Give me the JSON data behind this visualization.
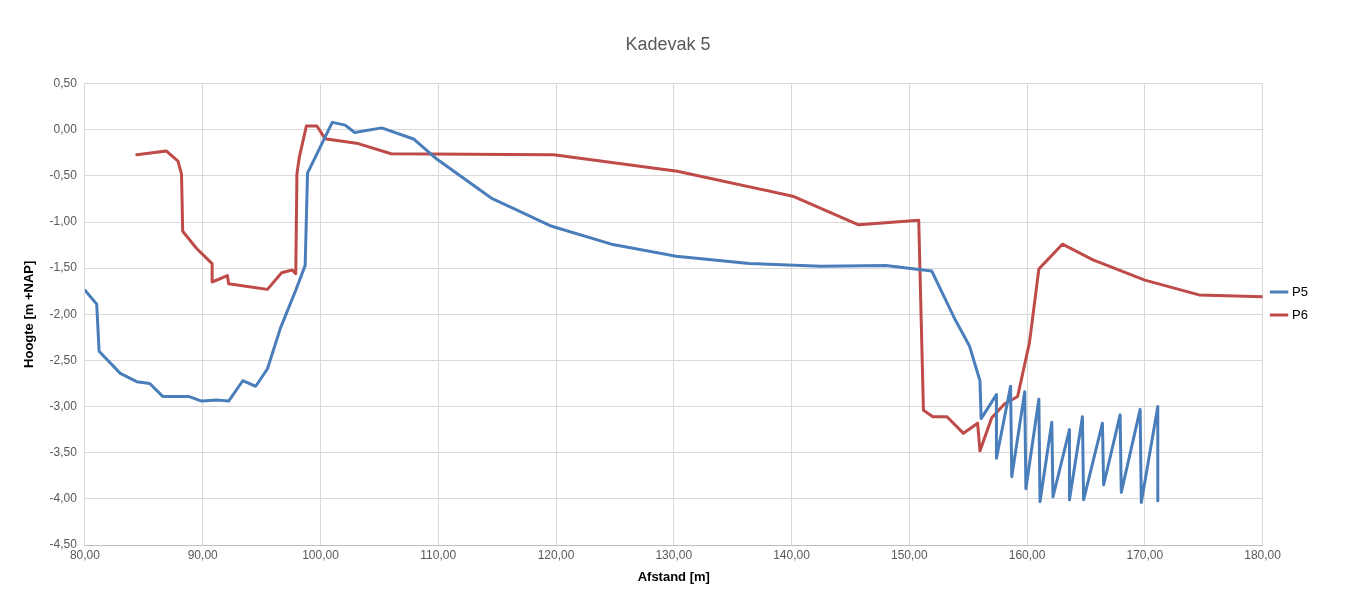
{
  "chart_data": {
    "type": "line",
    "title": "Kadevak 5",
    "xlabel": "Afstand [m]",
    "ylabel": "Hoogte [m +NAP]",
    "xlim": [
      80,
      180
    ],
    "xticks": [
      {
        "value": 80,
        "label": "80,00"
      },
      {
        "value": 90,
        "label": "90,00"
      },
      {
        "value": 100,
        "label": "100,00"
      },
      {
        "value": 110,
        "label": "110,00"
      },
      {
        "value": 120,
        "label": "120,00"
      },
      {
        "value": 130,
        "label": "130,00"
      },
      {
        "value": 140,
        "label": "140,00"
      },
      {
        "value": 150,
        "label": "150,00"
      },
      {
        "value": 160,
        "label": "160,00"
      },
      {
        "value": 170,
        "label": "170,00"
      },
      {
        "value": 180,
        "label": "180,00"
      }
    ],
    "ylim": [
      -4.5,
      0.5
    ],
    "yticks": [
      {
        "value": -4.5,
        "label": "-4,50"
      },
      {
        "value": -4,
        "label": "-4,00"
      },
      {
        "value": -3.5,
        "label": "-3,50"
      },
      {
        "value": -3,
        "label": "-3,00"
      },
      {
        "value": -2.5,
        "label": "-2,50"
      },
      {
        "value": -2,
        "label": "-2,00"
      },
      {
        "value": -1.5,
        "label": "-1,50"
      },
      {
        "value": -1,
        "label": "-1,00"
      },
      {
        "value": -0.5,
        "label": "-0,50"
      },
      {
        "value": 0,
        "label": "0,00"
      },
      {
        "value": 0.5,
        "label": "0,50"
      }
    ],
    "grid": true,
    "legend": "right",
    "marker": "none",
    "line_style": "solid",
    "series": [
      {
        "name": "P5",
        "color": "#4a7ebb",
        "x": [
          80.0,
          81.0,
          81.2,
          83.0,
          84.4,
          85.5,
          86.6,
          88.8,
          89.9,
          91.3,
          92.2,
          93.4,
          94.5,
          95.5,
          96.6,
          97.9,
          98.7,
          98.9,
          101.0,
          102.1,
          102.9,
          105.2,
          107.9,
          109.9,
          114.5,
          119.5,
          124.7,
          130.2,
          136.4,
          142.5,
          148.0,
          151.9,
          153.9,
          155.1,
          156.0,
          156.1,
          157.4,
          157.4,
          158.6,
          158.7,
          159.8,
          159.9,
          161.0,
          161.1,
          162.1,
          162.2,
          163.6,
          163.6,
          164.7,
          164.8,
          166.4,
          166.5,
          167.9,
          168.0,
          169.6,
          169.7,
          171.1,
          171.1
        ],
        "values": [
          -1.74,
          -1.89,
          -2.4,
          -2.64,
          -2.73,
          -2.75,
          -2.89,
          -2.89,
          -2.94,
          -2.93,
          -2.94,
          -2.72,
          -2.78,
          -2.59,
          -2.15,
          -1.74,
          -1.47,
          -0.47,
          0.08,
          0.05,
          -0.03,
          0.02,
          -0.1,
          -0.32,
          -0.74,
          -1.04,
          -1.24,
          -1.37,
          -1.45,
          -1.48,
          -1.47,
          -1.53,
          -2.06,
          -2.34,
          -2.72,
          -3.13,
          -2.87,
          -3.56,
          -2.78,
          -3.76,
          -2.84,
          -3.89,
          -2.92,
          -4.03,
          -3.17,
          -3.98,
          -3.25,
          -4.01,
          -3.11,
          -4.01,
          -3.18,
          -3.85,
          -3.09,
          -3.93,
          -3.03,
          -4.04,
          -3.0,
          -4.02
        ]
      },
      {
        "name": "P6",
        "color": "#be4b48",
        "x": [
          84.4,
          86.9,
          87.9,
          88.2,
          88.3,
          89.5,
          90.8,
          90.8,
          92.1,
          92.2,
          95.5,
          96.7,
          97.6,
          97.9,
          98.0,
          98.2,
          98.8,
          99.7,
          100.3,
          100.5,
          103.2,
          106.0,
          119.8,
          130.3,
          140.1,
          145.7,
          150.8,
          151.2,
          152.0,
          153.2,
          154.6,
          155.8,
          156.0,
          157.0,
          158.1,
          159.2,
          160.2,
          161.0,
          163.0,
          165.6,
          170.0,
          174.6,
          180.0
        ],
        "values": [
          -0.27,
          -0.23,
          -0.34,
          -0.48,
          -1.1,
          -1.29,
          -1.45,
          -1.65,
          -1.58,
          -1.67,
          -1.73,
          -1.55,
          -1.52,
          -1.56,
          -0.48,
          -0.3,
          0.04,
          0.04,
          -0.08,
          -0.1,
          -0.15,
          -0.26,
          -0.27,
          -0.45,
          -0.72,
          -1.03,
          -0.98,
          -3.04,
          -3.11,
          -3.11,
          -3.29,
          -3.18,
          -3.48,
          -3.12,
          -2.97,
          -2.89,
          -2.31,
          -1.51,
          -1.24,
          -1.41,
          -1.63,
          -1.79,
          -1.81
        ]
      }
    ]
  }
}
